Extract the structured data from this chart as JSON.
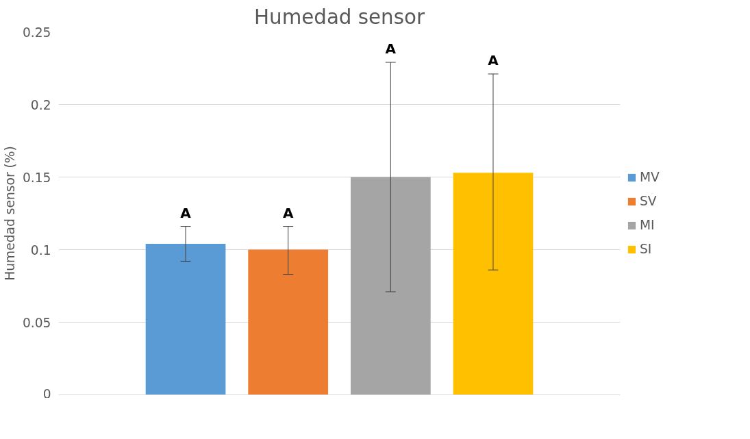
{
  "chart_data": {
    "type": "bar",
    "title": "Humedad sensor",
    "ylabel": "Humedad sensor (%)",
    "categories": [
      null
    ],
    "series": [
      {
        "name": "MV",
        "color": "#5b9bd5",
        "values": [
          0.104
        ],
        "errors": [
          [
            0.092,
            0.116
          ]
        ]
      },
      {
        "name": "SV",
        "color": "#ed7d31",
        "values": [
          0.1
        ],
        "errors": [
          [
            0.083,
            0.116
          ]
        ]
      },
      {
        "name": "MI",
        "color": "#a5a5a5",
        "values": [
          0.15
        ],
        "errors": [
          [
            0.071,
            0.229
          ]
        ]
      },
      {
        "name": "SI",
        "color": "#ffc000",
        "values": [
          0.153
        ],
        "errors": [
          [
            0.086,
            0.221
          ]
        ]
      }
    ],
    "annotations": [
      "A",
      "A",
      "A",
      "A"
    ],
    "ylim": [
      0,
      0.25
    ],
    "yticks": [
      0,
      0.05,
      0.1,
      0.15,
      0.2,
      0.25
    ],
    "grid": "y",
    "legend": "right"
  }
}
